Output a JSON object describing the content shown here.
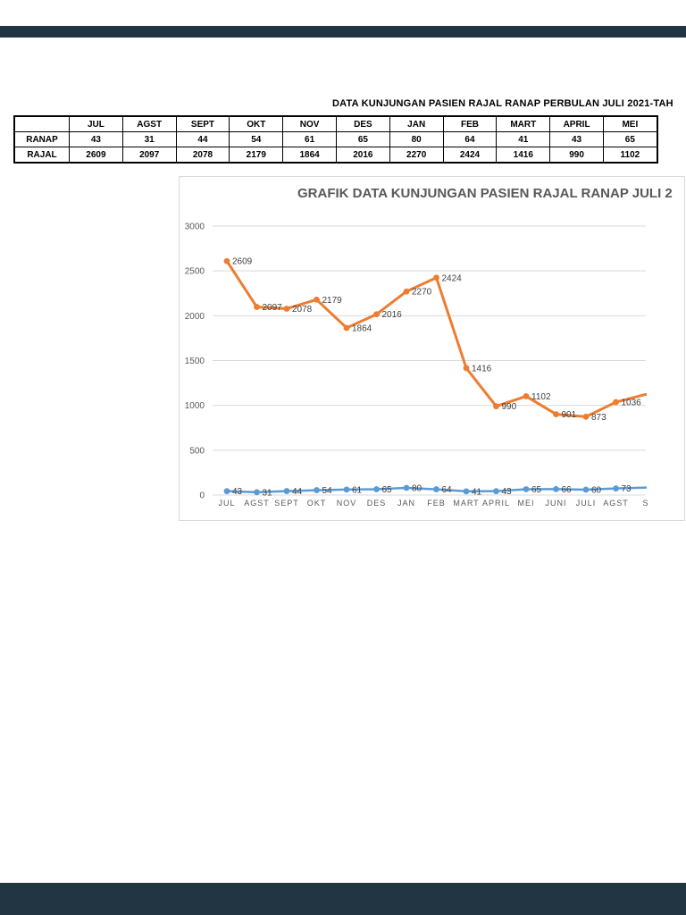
{
  "doc_title": "DATA KUNJUNGAN PASIEN RAJAL RANAP PERBULAN JULI 2021-TAH",
  "table": {
    "corner": "",
    "columns": [
      "JUL",
      "AGST",
      "SEPT",
      "OKT",
      "NOV",
      "DES",
      "JAN",
      "FEB",
      "MART",
      "APRIL",
      "MEI"
    ],
    "rows": [
      {
        "label": "RANAP",
        "values": [
          43,
          31,
          44,
          54,
          61,
          65,
          80,
          64,
          41,
          43,
          65
        ]
      },
      {
        "label": "RAJAL",
        "values": [
          2609,
          2097,
          2078,
          2179,
          1864,
          2016,
          2270,
          2424,
          1416,
          990,
          1102
        ]
      }
    ]
  },
  "chart_data": {
    "type": "line",
    "title": "GRAFIK DATA KUNJUNGAN PASIEN RAJAL RANAP JULI 2",
    "categories": [
      "JUL",
      "AGST",
      "SEPT",
      "OKT",
      "NOV",
      "DES",
      "JAN",
      "FEB",
      "MART",
      "APRIL",
      "MEI",
      "JUNI",
      "JULI",
      "AGST",
      "S"
    ],
    "series": [
      {
        "name": "RANAP",
        "color": "#5B9BD5",
        "values": [
          43,
          31,
          44,
          54,
          61,
          65,
          80,
          64,
          41,
          43,
          65,
          66,
          60,
          73
        ]
      },
      {
        "name": "RAJAL",
        "color": "#ED7D31",
        "values": [
          2609,
          2097,
          2078,
          2179,
          1864,
          2016,
          2270,
          2424,
          1416,
          990,
          1102,
          901,
          873,
          1036
        ]
      }
    ],
    "ylim": [
      0,
      3000
    ],
    "ytick_step": 500,
    "grid": true,
    "legend": "none",
    "data_labels": true
  },
  "colors": {
    "viewer_chrome": "#223543",
    "gridline": "#d9d9d9",
    "axis_text": "#595959",
    "data_label": "#404040",
    "table_border": "#000000"
  }
}
